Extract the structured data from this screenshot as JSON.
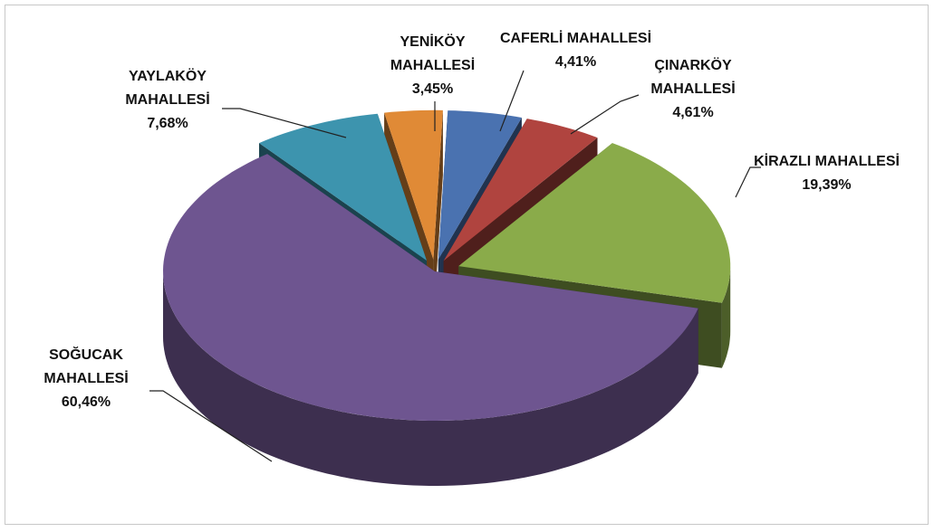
{
  "chart_data": {
    "type": "pie3d",
    "categories": [
      "CAFERLİ MAHALLESİ",
      "ÇINARKÖY MAHALLESİ",
      "KİRAZLI MAHALLESİ",
      "SOĞUCAK MAHALLESİ",
      "YAYLAKÖY MAHALLESİ",
      "YENİKÖY MAHALLESİ"
    ],
    "values": [
      4.41,
      4.61,
      19.39,
      60.46,
      7.68,
      3.45
    ],
    "value_labels": [
      "4,41%",
      "4,61%",
      "19,39%",
      "60,46%",
      "7,68%",
      "3,45%"
    ],
    "colors": [
      "#4a72b0",
      "#b0443f",
      "#8aab4a",
      "#6e5590",
      "#3d94ae",
      "#e08a36"
    ]
  }
}
